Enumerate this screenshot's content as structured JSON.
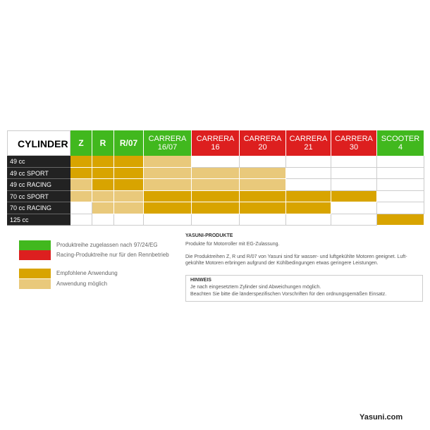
{
  "table": {
    "corner": "CYLINDER",
    "columns": [
      {
        "lines": [
          "Z"
        ],
        "color": "#41b81e"
      },
      {
        "lines": [
          "R"
        ],
        "color": "#41b81e"
      },
      {
        "lines": [
          "R/07"
        ],
        "color": "#41b81e"
      },
      {
        "lines": [
          "CARRERA",
          "16/07"
        ],
        "color": "#41b81e"
      },
      {
        "lines": [
          "CARRERA",
          "16"
        ],
        "color": "#dd1f1f"
      },
      {
        "lines": [
          "CARRERA",
          "20"
        ],
        "color": "#dd1f1f"
      },
      {
        "lines": [
          "CARRERA",
          "21"
        ],
        "color": "#dd1f1f"
      },
      {
        "lines": [
          "CARRERA",
          "30"
        ],
        "color": "#dd1f1f"
      },
      {
        "lines": [
          "SCOOTER",
          "4"
        ],
        "color": "#41b81e"
      }
    ],
    "rows": [
      {
        "label": "49 cc",
        "cells": [
          "#d8a400",
          "#d8a400",
          "#d8a400",
          "#e9c97b",
          null,
          null,
          null,
          null,
          null
        ]
      },
      {
        "label": "49 cc SPORT",
        "cells": [
          "#d8a400",
          "#d8a400",
          "#d8a400",
          "#e9c97b",
          "#e9c97b",
          "#e9c97b",
          null,
          null,
          null
        ]
      },
      {
        "label": "49 cc RACING",
        "cells": [
          "#e9c97b",
          "#d8a400",
          "#d8a400",
          "#e9c97b",
          "#e9c97b",
          "#e9c97b",
          null,
          null,
          null
        ]
      },
      {
        "label": "70 cc SPORT",
        "cells": [
          "#e9c97b",
          "#e9c97b",
          "#e9c97b",
          "#d8a400",
          "#d8a400",
          "#d8a400",
          "#d8a400",
          "#d8a400",
          null
        ]
      },
      {
        "label": "70 cc RACING",
        "cells": [
          null,
          "#e9c97b",
          "#e9c97b",
          "#d8a400",
          "#d8a400",
          "#d8a400",
          "#d8a400",
          null,
          null
        ]
      },
      {
        "label": "125 cc",
        "cells": [
          null,
          null,
          null,
          null,
          null,
          null,
          null,
          null,
          "#d8a400"
        ]
      }
    ]
  },
  "legend": [
    {
      "color": "#41b81e",
      "text": "Produktreihe zugelassen nach 97/24/EG"
    },
    {
      "color": "#dd1f1f",
      "text": "Racing-Produktreihe nur für den Rennbetrieb"
    },
    {
      "color": "#d8a400",
      "text": "Empfohlene Anwendung"
    },
    {
      "color": "#e9c97b",
      "text": "Anwendung möglich"
    }
  ],
  "info": {
    "title": "YASUNI-PRODUKTE",
    "lines": [
      "Produkte für Motorroller mit EG-Zulassung.",
      "Die Produktreihen Z, R und R/07 von Yasuni sind für wasser- und luftgekühlte Motoren geeignet. Luft-",
      "gekühlte Motoren erbringen aufgrund der Kühlbedingungen etwas geringere Leistungen."
    ]
  },
  "note": {
    "title": "HINWEIS",
    "lines": [
      "Je nach eingesetztem Zylinder sind Abweichungen möglich.",
      "Beachten Sie bitte die länderspezifischen Vorschriften für den ordnungsgemäßen Einsatz."
    ]
  },
  "footer": "Yasuni.com"
}
